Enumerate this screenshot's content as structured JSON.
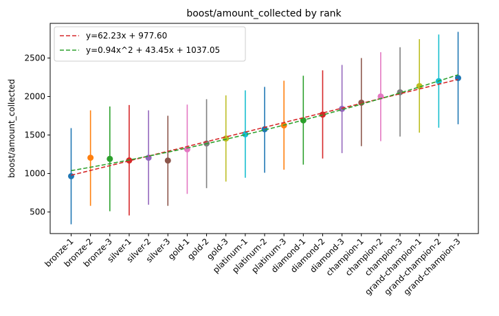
{
  "chart_data": {
    "type": "scatter",
    "title": "boost/amount_collected by rank",
    "xlabel": "",
    "ylabel": "boost/amount_collected",
    "categories": [
      "bronze-1",
      "bronze-2",
      "bronze-3",
      "silver-1",
      "silver-2",
      "silver-3",
      "gold-1",
      "gold-2",
      "gold-3",
      "platinum-1",
      "platinum-2",
      "platinum-3",
      "diamond-1",
      "diamond-2",
      "diamond-3",
      "champion-1",
      "champion-2",
      "champion-3",
      "grand-champion-1",
      "grand-champion-2",
      "grand-champion-3"
    ],
    "means": [
      965,
      1205,
      1190,
      1170,
      1205,
      1168,
      1315,
      1390,
      1455,
      1510,
      1575,
      1625,
      1690,
      1765,
      1840,
      1920,
      2000,
      2055,
      2135,
      2200,
      2240
    ],
    "lower": [
      340,
      580,
      510,
      455,
      595,
      580,
      735,
      810,
      895,
      945,
      1010,
      1050,
      1115,
      1195,
      1265,
      1355,
      1420,
      1480,
      1530,
      1595,
      1640
    ],
    "upper": [
      1590,
      1820,
      1870,
      1890,
      1820,
      1750,
      1895,
      1965,
      2015,
      2080,
      2125,
      2205,
      2270,
      2340,
      2410,
      2500,
      2575,
      2640,
      2745,
      2805,
      2840
    ],
    "colors": [
      "#1f77b4",
      "#ff7f0e",
      "#2ca02c",
      "#d62728",
      "#9467bd",
      "#8c564b",
      "#e377c2",
      "#7f7f7f",
      "#bcbd22",
      "#17becf",
      "#1f77b4",
      "#ff7f0e",
      "#2ca02c",
      "#d62728",
      "#9467bd",
      "#8c564b",
      "#e377c2",
      "#7f7f7f",
      "#bcbd22",
      "#17becf",
      "#1f77b4"
    ],
    "yticks": [
      500,
      1000,
      1500,
      2000,
      2500
    ],
    "ylim": [
      220,
      2950
    ],
    "grid": false,
    "legend_position": "top-left",
    "fits": [
      {
        "label": "y=62.23x + 977.60",
        "color": "#d62728",
        "a": 0,
        "b": 62.23,
        "c": 977.6
      },
      {
        "label": "y=0.94x^2 + 43.45x + 1037.05",
        "color": "#2ca02c",
        "a": 0.94,
        "b": 43.45,
        "c": 1037.05
      }
    ]
  }
}
